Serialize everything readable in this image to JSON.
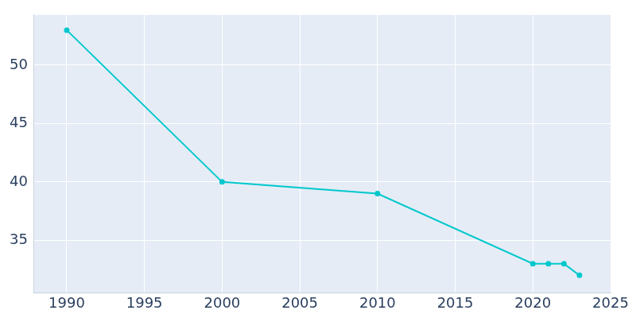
{
  "chart_data": {
    "type": "line",
    "x": [
      1990,
      2000,
      2010,
      2020,
      2021,
      2022,
      2023
    ],
    "values": [
      53,
      40,
      39,
      33,
      33,
      33,
      32
    ],
    "color": "#00c8cc",
    "marker": "circle",
    "xlim": [
      1987.9,
      2025
    ],
    "ylim": [
      30.5,
      54.3
    ],
    "xticks": [
      1990,
      1995,
      2000,
      2005,
      2010,
      2015,
      2020,
      2025
    ],
    "yticks": [
      35,
      40,
      45,
      50
    ],
    "grid": true
  }
}
